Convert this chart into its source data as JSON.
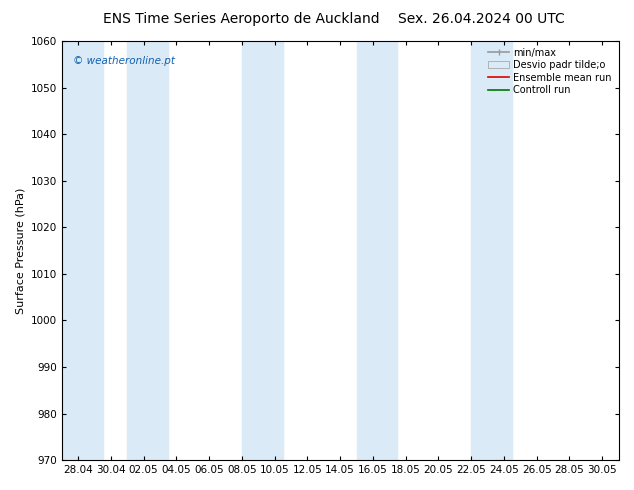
{
  "title_left": "ENS Time Series Aeroporto de Auckland",
  "title_right": "Sex. 26.04.2024 00 UTC",
  "ylabel": "Surface Pressure (hPa)",
  "ylim": [
    970,
    1060
  ],
  "yticks": [
    970,
    980,
    990,
    1000,
    1010,
    1020,
    1030,
    1040,
    1050,
    1060
  ],
  "xtick_labels": [
    "28.04",
    "30.04",
    "02.05",
    "04.05",
    "06.05",
    "08.05",
    "10.05",
    "12.05",
    "14.05",
    "16.05",
    "18.05",
    "20.05",
    "22.05",
    "24.05",
    "26.05",
    "28.05",
    "30.05"
  ],
  "watermark": "© weatheronline.pt",
  "legend_entries": [
    "min/max",
    "Desvio padr tilde;o",
    "Ensemble mean run",
    "Controll run"
  ],
  "background_color": "#ffffff",
  "plot_bg_color": "#ffffff",
  "band_color": "#daeaf7",
  "title_fontsize": 10,
  "axis_fontsize": 8,
  "tick_fontsize": 7.5,
  "band_x_starts": [
    -1.0,
    3.0,
    10.0,
    17.0,
    24.0
  ],
  "band_x_ends": [
    1.5,
    5.5,
    12.5,
    19.5,
    26.5
  ]
}
